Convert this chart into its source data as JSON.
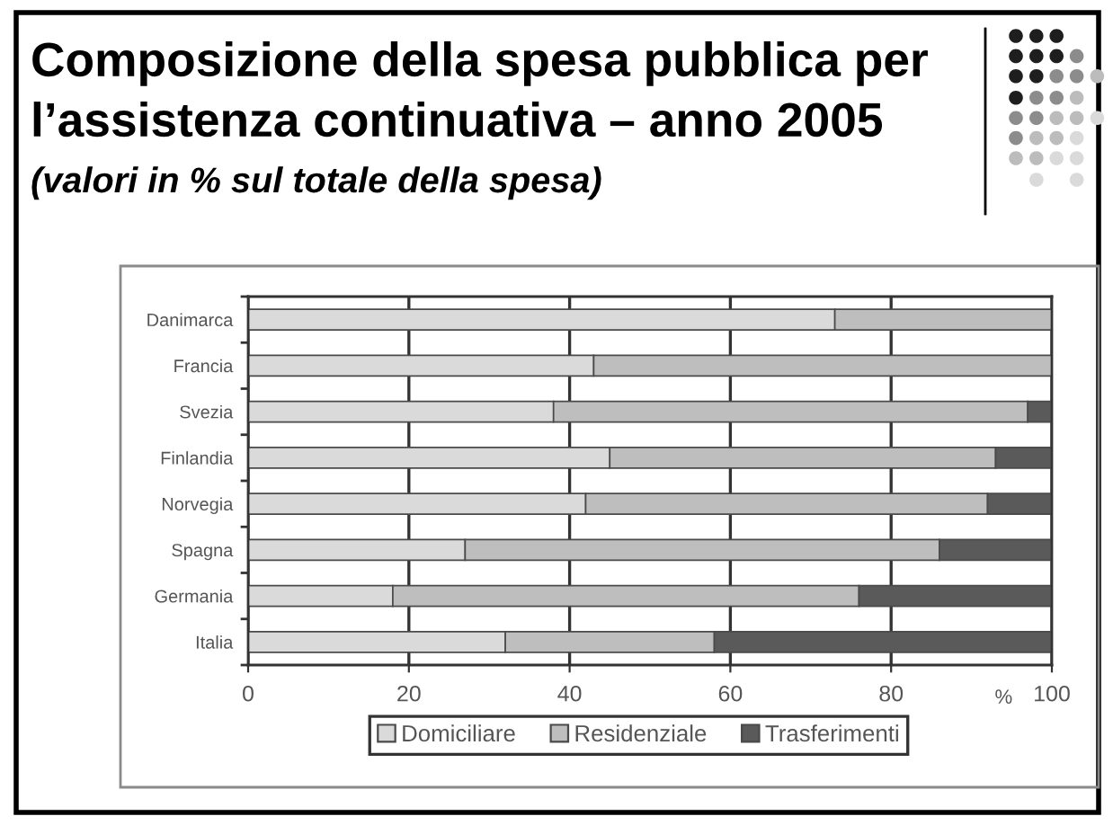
{
  "chart_data": {
    "type": "bar",
    "orientation": "horizontal",
    "stacked": true,
    "title": "Composizione della spesa pubblica per\nl’assistenza continuativa – anno 2005",
    "subtitle": "(valori in % sul totale della spesa)",
    "xlabel": "%",
    "categories": [
      "Danimarca",
      "Francia",
      "Svezia",
      "Finlandia",
      "Norvegia",
      "Spagna",
      "Germania",
      "Italia"
    ],
    "series": [
      {
        "name": "Domiciliare",
        "color": "#dadada",
        "values": [
          73,
          43,
          38,
          45,
          42,
          27,
          18,
          32
        ]
      },
      {
        "name": "Residenziale",
        "color": "#bebebe",
        "values": [
          27,
          57,
          59,
          48,
          50,
          59,
          58,
          26
        ]
      },
      {
        "name": "Trasferimenti",
        "color": "#5a5a5a",
        "values": [
          0,
          0,
          3,
          7,
          8,
          14,
          24,
          42
        ]
      }
    ],
    "xlim": [
      0,
      100
    ],
    "xticks": [
      0,
      20,
      40,
      60,
      80,
      100
    ],
    "grid": "x",
    "legend": "bottom"
  }
}
